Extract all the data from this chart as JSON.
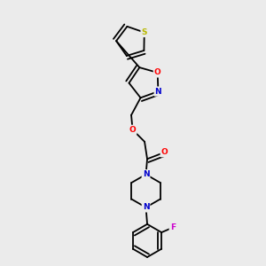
{
  "background_color": "#ebebeb",
  "bond_color": "#000000",
  "atom_colors": {
    "S": "#b8b800",
    "O": "#ff0000",
    "N": "#0000cc",
    "F": "#cc00cc",
    "C": "#000000"
  },
  "lw": 1.3,
  "fs": 6.5
}
